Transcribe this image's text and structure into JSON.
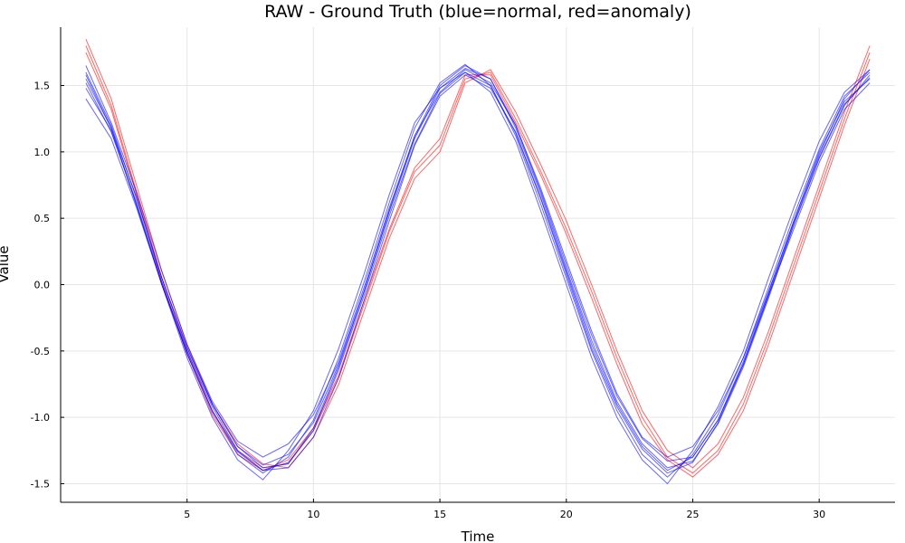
{
  "chart_data": {
    "type": "line",
    "title": "RAW - Ground Truth (blue=normal, red=anomaly)",
    "xlabel": "Time",
    "ylabel": "Value",
    "xlim": [
      0,
      33
    ],
    "ylim": [
      -1.64,
      1.94
    ],
    "xticks": [
      5,
      10,
      15,
      20,
      25,
      30
    ],
    "yticks": [
      -1.5,
      -1.0,
      -0.5,
      0.0,
      0.5,
      1.0,
      1.5
    ],
    "ytick_labels": [
      "-1.5",
      "-1.0",
      "-0.5",
      "0.0",
      "0.5",
      "1.0",
      "1.5"
    ],
    "grid": true,
    "legend": "none",
    "colors": {
      "normal": "#0000ff",
      "anomaly": "#ff0000"
    },
    "x": [
      1,
      2,
      3,
      4,
      5,
      6,
      7,
      8,
      9,
      10,
      11,
      12,
      13,
      14,
      15,
      16,
      17,
      18,
      19,
      20,
      21,
      22,
      23,
      24,
      25,
      26,
      27,
      28,
      29,
      30,
      31,
      32
    ],
    "series": [
      {
        "group": "normal",
        "values": [
          1.6,
          1.2,
          0.65,
          0.05,
          -0.48,
          -0.9,
          -1.22,
          -1.38,
          -1.35,
          -1.08,
          -0.62,
          -0.05,
          0.55,
          1.1,
          1.48,
          1.63,
          1.55,
          1.18,
          0.68,
          0.12,
          -0.42,
          -0.88,
          -1.2,
          -1.38,
          -1.33,
          -1.05,
          -0.62,
          -0.1,
          0.45,
          0.95,
          1.35,
          1.58
        ]
      },
      {
        "group": "normal",
        "values": [
          1.52,
          1.15,
          0.62,
          0.02,
          -0.52,
          -0.95,
          -1.28,
          -1.42,
          -1.3,
          -1.02,
          -0.55,
          0.02,
          0.62,
          1.18,
          1.52,
          1.66,
          1.5,
          1.12,
          0.6,
          0.05,
          -0.5,
          -0.95,
          -1.28,
          -1.45,
          -1.28,
          -0.98,
          -0.55,
          -0.02,
          0.52,
          1.02,
          1.42,
          1.6
        ]
      },
      {
        "group": "normal",
        "values": [
          1.4,
          1.1,
          0.58,
          0.0,
          -0.55,
          -1.0,
          -1.32,
          -1.47,
          -1.25,
          -0.95,
          -0.48,
          0.08,
          0.68,
          1.22,
          1.48,
          1.6,
          1.45,
          1.08,
          0.55,
          0.0,
          -0.55,
          -1.0,
          -1.32,
          -1.5,
          -1.25,
          -0.92,
          -0.5,
          0.05,
          0.58,
          1.08,
          1.45,
          1.62
        ]
      },
      {
        "group": "normal",
        "values": [
          1.65,
          1.22,
          0.7,
          0.1,
          -0.45,
          -0.88,
          -1.18,
          -1.3,
          -1.2,
          -0.98,
          -0.58,
          -0.02,
          0.58,
          1.12,
          1.45,
          1.62,
          1.52,
          1.2,
          0.72,
          0.18,
          -0.35,
          -0.82,
          -1.15,
          -1.3,
          -1.22,
          -0.95,
          -0.55,
          -0.05,
          0.48,
          1.0,
          1.38,
          1.55
        ]
      },
      {
        "group": "normal",
        "values": [
          1.55,
          1.18,
          0.6,
          0.0,
          -0.5,
          -0.92,
          -1.25,
          -1.4,
          -1.38,
          -1.15,
          -0.7,
          -0.12,
          0.48,
          1.05,
          1.42,
          1.58,
          1.48,
          1.15,
          0.65,
          0.1,
          -0.45,
          -0.9,
          -1.22,
          -1.4,
          -1.3,
          -1.02,
          -0.6,
          -0.08,
          0.42,
          0.92,
          1.32,
          1.52
        ]
      },
      {
        "group": "normal",
        "values": [
          1.58,
          1.18,
          0.66,
          0.05,
          -0.47,
          -0.9,
          -1.22,
          -1.36,
          -1.28,
          -1.04,
          -0.6,
          -0.05,
          0.56,
          1.12,
          1.5,
          1.65,
          1.55,
          1.2,
          0.7,
          0.15,
          -0.38,
          -0.84,
          -1.16,
          -1.33,
          -1.3,
          -1.02,
          -0.58,
          -0.06,
          0.48,
          0.98,
          1.4,
          1.62
        ]
      },
      {
        "group": "normal",
        "values": [
          1.48,
          1.16,
          0.6,
          0.0,
          -0.52,
          -0.96,
          -1.26,
          -1.4,
          -1.34,
          -1.1,
          -0.64,
          -0.08,
          0.52,
          1.06,
          1.44,
          1.6,
          1.5,
          1.14,
          0.64,
          0.08,
          -0.48,
          -0.92,
          -1.24,
          -1.42,
          -1.34,
          -1.04,
          -0.6,
          -0.08,
          0.46,
          0.96,
          1.36,
          1.56
        ]
      },
      {
        "group": "anomaly",
        "values": [
          1.85,
          1.4,
          0.75,
          0.1,
          -0.45,
          -0.9,
          -1.2,
          -1.35,
          -1.38,
          -1.15,
          -0.75,
          -0.2,
          0.35,
          0.8,
          1.0,
          1.52,
          1.62,
          1.3,
          0.9,
          0.48,
          0.0,
          -0.5,
          -0.95,
          -1.25,
          -1.38,
          -1.2,
          -0.85,
          -0.35,
          0.2,
          0.75,
          1.3,
          1.8
        ]
      },
      {
        "group": "anomaly",
        "values": [
          1.8,
          1.35,
          0.7,
          0.05,
          -0.5,
          -0.95,
          -1.25,
          -1.38,
          -1.35,
          -1.1,
          -0.7,
          -0.15,
          0.4,
          0.85,
          1.05,
          1.55,
          1.6,
          1.25,
          0.85,
          0.42,
          -0.05,
          -0.55,
          -1.0,
          -1.3,
          -1.42,
          -1.25,
          -0.9,
          -0.4,
          0.15,
          0.7,
          1.25,
          1.75
        ]
      },
      {
        "group": "anomaly",
        "values": [
          1.75,
          1.32,
          0.68,
          0.02,
          -0.52,
          -0.98,
          -1.28,
          -1.4,
          -1.32,
          -1.08,
          -0.68,
          -0.12,
          0.42,
          0.88,
          1.1,
          1.58,
          1.58,
          1.22,
          0.82,
          0.38,
          -0.1,
          -0.6,
          -1.05,
          -1.32,
          -1.45,
          -1.28,
          -0.95,
          -0.45,
          0.1,
          0.65,
          1.2,
          1.7
        ]
      }
    ]
  }
}
